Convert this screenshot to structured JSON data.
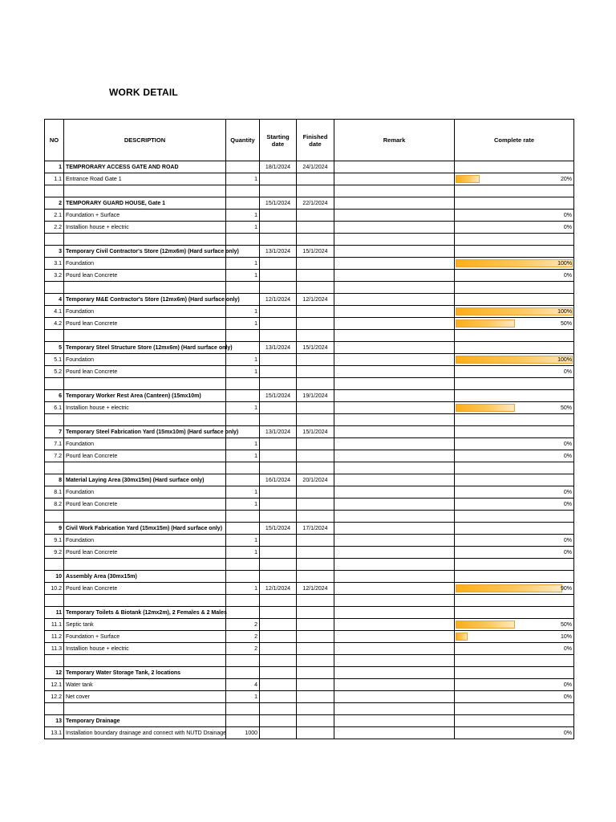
{
  "page": {
    "title": "WORK DETAIL"
  },
  "colors": {
    "bar_start": "#FBAE17",
    "bar_end": "#FEE9C2",
    "bar_border": "#E8A33D",
    "grid": "#000000"
  },
  "table": {
    "headers": [
      "NO",
      "DESCRIPTION",
      "Quantity",
      "Starting date",
      "Finished date",
      "Remark",
      "Complete rate"
    ],
    "rows": [
      {
        "type": "group",
        "no": "1",
        "desc": "TEMPRORARY ACCESS GATE AND ROAD",
        "start": "18/1/2024",
        "finish": "24/1/2024"
      },
      {
        "type": "item",
        "no": "1.1",
        "desc": "Entrance Road Gate 1",
        "qty": "1",
        "pct": 20,
        "pct_label": "20%"
      },
      {
        "type": "blank"
      },
      {
        "type": "group",
        "no": "2",
        "desc": "TEMPORARY GUARD HOUSE, Gate 1",
        "start": "15/1/2024",
        "finish": "22/1/2024"
      },
      {
        "type": "item",
        "no": "2.1",
        "desc": "Foundation + Surface",
        "qty": "1",
        "pct": 0,
        "pct_label": "0%"
      },
      {
        "type": "item",
        "no": "2.2",
        "desc": "Installion house + electric",
        "qty": "1",
        "pct": 0,
        "pct_label": "0%"
      },
      {
        "type": "blank"
      },
      {
        "type": "group",
        "no": "3",
        "desc": "Temporary Civil Contractor's Store (12mx6m) (Hard surface only)",
        "start": "13/1/2024",
        "finish": "15/1/2024"
      },
      {
        "type": "item",
        "no": "3.1",
        "desc": "Foundation",
        "qty": "1",
        "pct": 100,
        "pct_label": "100%"
      },
      {
        "type": "item",
        "no": "3.2",
        "desc": "Pourd lean Concrete",
        "qty": "1",
        "pct": 0,
        "pct_label": "0%"
      },
      {
        "type": "blank"
      },
      {
        "type": "group",
        "no": "4",
        "desc": "Temporary M&E Contractor's Store (12mx6m) (Hard surface only)",
        "start": "12/1/2024",
        "finish": "12/1/2024"
      },
      {
        "type": "item",
        "no": "4.1",
        "desc": "Foundation",
        "qty": "1",
        "pct": 100,
        "pct_label": "100%"
      },
      {
        "type": "item",
        "no": "4.2",
        "desc": "Pourd lean Concrete",
        "qty": "1",
        "pct": 50,
        "pct_label": "50%"
      },
      {
        "type": "blank"
      },
      {
        "type": "group",
        "no": "5",
        "desc": "Temporary Steel Structure Store (12mx6m) (Hard surface only)",
        "start": "13/1/2024",
        "finish": "15/1/2024"
      },
      {
        "type": "item",
        "no": "5.1",
        "desc": "Foundation",
        "qty": "1",
        "pct": 100,
        "pct_label": "100%"
      },
      {
        "type": "item",
        "no": "5.2",
        "desc": "Pourd lean Concrete",
        "qty": "1",
        "pct": 0,
        "pct_label": "0%"
      },
      {
        "type": "blank"
      },
      {
        "type": "group",
        "no": "6",
        "desc": "Temporary Worker Rest Area (Canteen) (15mx10m)",
        "start": "15/1/2024",
        "finish": "19/1/2024"
      },
      {
        "type": "item",
        "no": "6.1",
        "desc": "Installion house + electric",
        "qty": "1",
        "pct": 50,
        "pct_label": "50%"
      },
      {
        "type": "blank"
      },
      {
        "type": "group",
        "no": "7",
        "desc": "Temporary Steel Fabrication Yard (15mx10m) (Hard surface only)",
        "start": "13/1/2024",
        "finish": "15/1/2024"
      },
      {
        "type": "item",
        "no": "7.1",
        "desc": "Foundation",
        "qty": "1",
        "pct": 0,
        "pct_label": "0%"
      },
      {
        "type": "item",
        "no": "7.2",
        "desc": "Pourd lean Concrete",
        "qty": "1",
        "pct": 0,
        "pct_label": "0%"
      },
      {
        "type": "blank"
      },
      {
        "type": "group",
        "no": "8",
        "desc": "Material Laying Area (30mx15m) (Hard surface only)",
        "start": "16/1/2024",
        "finish": "20/1/2024"
      },
      {
        "type": "item",
        "no": "8.1",
        "desc": "Foundation",
        "qty": "1",
        "pct": 0,
        "pct_label": "0%"
      },
      {
        "type": "item",
        "no": "8.2",
        "desc": "Pourd lean Concrete",
        "qty": "1",
        "pct": 0,
        "pct_label": "0%"
      },
      {
        "type": "blank"
      },
      {
        "type": "group",
        "no": "9",
        "desc": "Civil Work Fabrication Yard (15mx15m) (Hard surface only)",
        "start": "15/1/2024",
        "finish": "17/1/2024"
      },
      {
        "type": "item",
        "no": "9.1",
        "desc": "Foundation",
        "qty": "1",
        "pct": 0,
        "pct_label": "0%"
      },
      {
        "type": "item",
        "no": "9.2",
        "desc": "Pourd lean Concrete",
        "qty": "1",
        "pct": 0,
        "pct_label": "0%"
      },
      {
        "type": "blank"
      },
      {
        "type": "group",
        "no": "10",
        "desc": "Assembly Area (30mx15m)"
      },
      {
        "type": "item",
        "no": "10.2",
        "desc": "Pourd lean Concrete",
        "qty": "1",
        "start": "12/1/2024",
        "finish": "12/1/2024",
        "pct": 90,
        "pct_label": "90%"
      },
      {
        "type": "blank"
      },
      {
        "type": "group",
        "no": "11",
        "desc": "Temporary Toilets & Biotank (12mx2m), 2 Females & 2 Males"
      },
      {
        "type": "item",
        "no": "11.1",
        "desc": "Septic tank",
        "qty": "2",
        "pct": 50,
        "pct_label": "50%"
      },
      {
        "type": "item",
        "no": "11.2",
        "desc": "Foundation + Surface",
        "qty": "2",
        "pct": 10,
        "pct_label": "10%"
      },
      {
        "type": "item",
        "no": "11.3",
        "desc": "Installion house + electric",
        "qty": "2",
        "pct": 0,
        "pct_label": "0%"
      },
      {
        "type": "blank"
      },
      {
        "type": "group",
        "no": "12",
        "desc": "Temporary Water Storage Tank, 2 locations"
      },
      {
        "type": "item",
        "no": "12.1",
        "desc": "Water tank",
        "qty": "4",
        "pct": 0,
        "pct_label": "0%"
      },
      {
        "type": "item",
        "no": "12.2",
        "desc": "Net cover",
        "qty": "1",
        "pct": 0,
        "pct_label": "0%"
      },
      {
        "type": "blank"
      },
      {
        "type": "group",
        "no": "13",
        "desc": "Temporary Drainage"
      },
      {
        "type": "item",
        "no": "13.1",
        "desc": "Installation boundary drainage and connect with NUTD Drainage",
        "qty": "1000",
        "pct": 0,
        "pct_label": "0%"
      }
    ]
  }
}
